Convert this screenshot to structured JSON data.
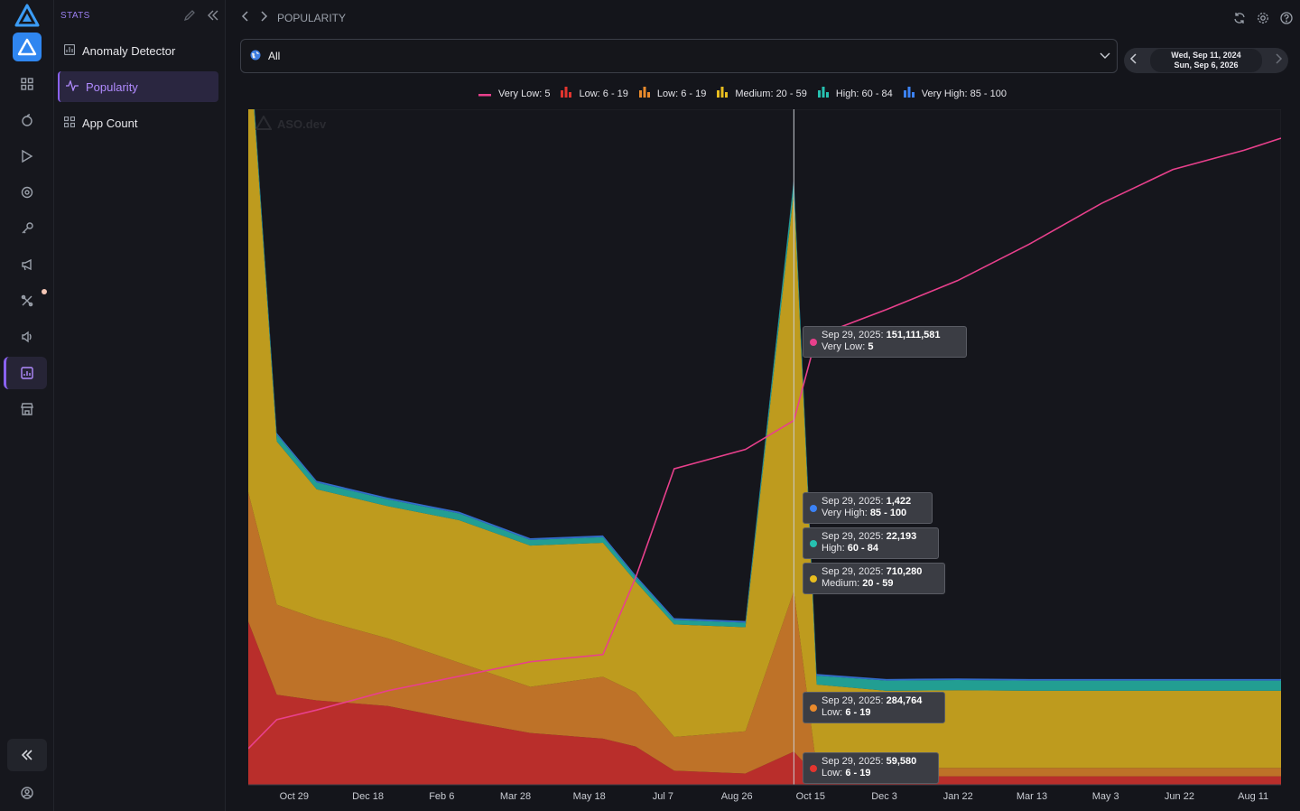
{
  "sidebar": {
    "title": "STATS",
    "items": [
      {
        "label": "Anomaly Detector",
        "icon": "chart-box-icon",
        "active": false
      },
      {
        "label": "Popularity",
        "icon": "pulse-icon",
        "active": true
      },
      {
        "label": "App Count",
        "icon": "grid-icon",
        "active": false
      }
    ]
  },
  "breadcrumb": {
    "page": "POPULARITY"
  },
  "filter": {
    "value": "All"
  },
  "date_range": {
    "start": "Wed, Sep 11, 2024",
    "end": "Sun, Sep 6, 2026"
  },
  "watermark": "ASO.dev",
  "legend": [
    {
      "label": "Very Low: 5",
      "color": "#e8408c",
      "kind": "line"
    },
    {
      "label": "Low: 6 - 19",
      "color": "#e2352f",
      "kind": "bar"
    },
    {
      "label": "Low: 6 - 19",
      "color": "#e98a2c",
      "kind": "bar"
    },
    {
      "label": "Medium: 20 - 59",
      "color": "#e8bd1f",
      "kind": "bar"
    },
    {
      "label": "High: 60 - 84",
      "color": "#26c1b0",
      "kind": "bar"
    },
    {
      "label": "Very High: 85 - 100",
      "color": "#3b82f6",
      "kind": "bar"
    }
  ],
  "tooltips": [
    {
      "date": "Sep 29, 2025:",
      "value": "151,111,581",
      "series": "Very Low:",
      "range": "5",
      "color": "#e8408c"
    },
    {
      "date": "Sep 29, 2025:",
      "value": "1,422",
      "series": "Very High:",
      "range": "85 - 100",
      "color": "#3b82f6"
    },
    {
      "date": "Sep 29, 2025:",
      "value": "22,193",
      "series": "High:",
      "range": "60 - 84",
      "color": "#26c1b0"
    },
    {
      "date": "Sep 29, 2025:",
      "value": "710,280",
      "series": "Medium:",
      "range": "20 - 59",
      "color": "#e8bd1f"
    },
    {
      "date": "Sep 29, 2025:",
      "value": "284,764",
      "series": "Low:",
      "range": "6 - 19",
      "color": "#e98a2c"
    },
    {
      "date": "Sep 29, 2025:",
      "value": "59,580",
      "series": "Low:",
      "range": "6 - 19",
      "color": "#e2352f"
    }
  ],
  "chart_data": {
    "type": "area",
    "x_ticks": [
      "Oct 29",
      "Dec 18",
      "Feb 6",
      "Mar 28",
      "May 18",
      "Jul 7",
      "Aug 26",
      "Oct 15",
      "Dec 3",
      "Jan 22",
      "Mar 13",
      "May 3",
      "Jun 22",
      "Aug 11"
    ],
    "x": [
      "2024-09-11",
      "2024-10-01",
      "2024-10-29",
      "2024-12-18",
      "2025-02-06",
      "2025-03-28",
      "2025-05-18",
      "2025-06-10",
      "2025-07-07",
      "2025-08-26",
      "2025-09-29",
      "2025-10-15",
      "2025-12-03",
      "2026-01-22",
      "2026-03-13",
      "2026-05-03",
      "2026-06-22",
      "2026-08-11",
      "2026-09-06"
    ],
    "series": [
      {
        "name": "Low: 6 - 19",
        "color": "#e2352f",
        "kind": "bar",
        "values": [
          290,
          160,
          150,
          140,
          115,
          92,
          82,
          68,
          25,
          20,
          59,
          15,
          15,
          15,
          15,
          15,
          15,
          15,
          15
        ]
      },
      {
        "name": "Low: 6 - 19",
        "color": "#e98a2c",
        "kind": "bar",
        "values": [
          230,
          160,
          145,
          120,
          102,
          82,
          110,
          96,
          60,
          75,
          285,
          15,
          15,
          15,
          15,
          15,
          15,
          15,
          15
        ]
      },
      {
        "name": "Medium: 20 - 59",
        "color": "#e8bd1f",
        "kind": "bar",
        "values": [
          830,
          290,
          230,
          235,
          253,
          251,
          238,
          197,
          200,
          185,
          710,
          148,
          137,
          138,
          137,
          137,
          137,
          137,
          137
        ]
      },
      {
        "name": "High: 60 - 84",
        "color": "#26c1b0",
        "kind": "bar",
        "values": [
          14,
          12,
          12,
          12,
          12,
          10,
          10,
          8,
          8,
          8,
          22,
          16,
          18,
          18,
          18,
          18,
          18,
          18,
          18
        ]
      },
      {
        "name": "Very High: 85 - 100",
        "color": "#3b82f6",
        "kind": "bar",
        "values": [
          3,
          3,
          3,
          3,
          3,
          3,
          3,
          3,
          3,
          3,
          1.4,
          3,
          3,
          3,
          3,
          3,
          3,
          3,
          3
        ]
      },
      {
        "name": "Very Low: 5",
        "color": "#e8408c",
        "kind": "line",
        "values": [
          15,
          27,
          31,
          39,
          45,
          51,
          54,
          86,
          131,
          139,
          151,
          186,
          197,
          209,
          224,
          241,
          255,
          263,
          268
        ]
      }
    ],
    "stack_ylim": [
      0,
      1200
    ],
    "line_ylim": [
      0,
      280
    ],
    "crosshair_date": "2025-09-29"
  }
}
